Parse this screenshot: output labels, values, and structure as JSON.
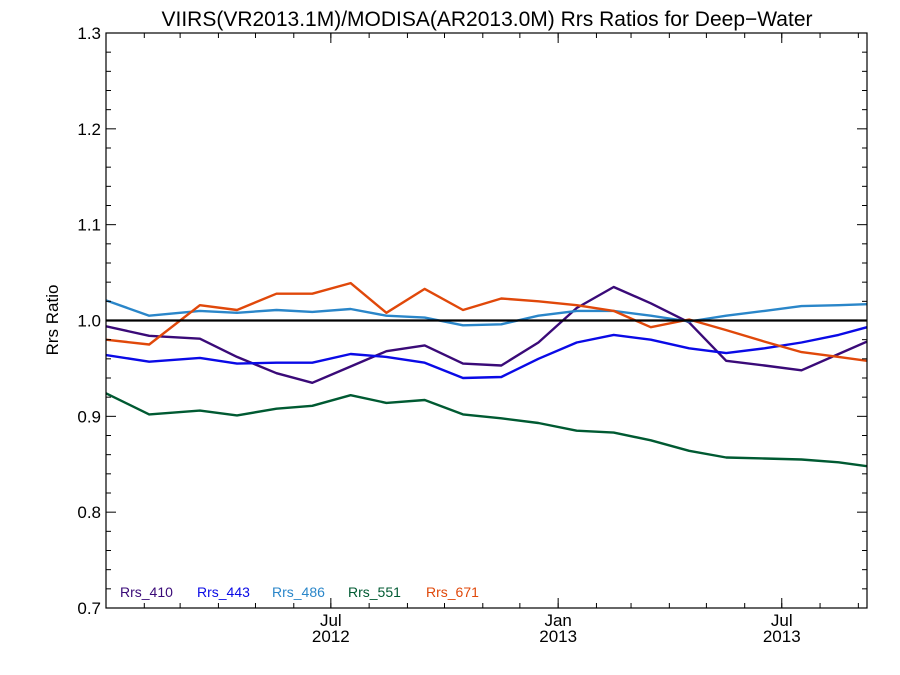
{
  "chart_data": {
    "type": "line",
    "title": "VIIRS(VR2013.1M)/MODISA(AR2013.0M)  Rrs Ratios for Deep−Water",
    "xlabel": "",
    "ylabel": "Rrs Ratio",
    "xlim": [
      "2012-01-01",
      "2013-09-08"
    ],
    "ylim": [
      0.7,
      1.3
    ],
    "y_ticks": [
      {
        "value": 0.7,
        "label": "0.7"
      },
      {
        "value": 0.8,
        "label": "0.8"
      },
      {
        "value": 0.9,
        "label": "0.9"
      },
      {
        "value": 1.0,
        "label": "1.0"
      },
      {
        "value": 1.1,
        "label": "1.1"
      },
      {
        "value": 1.2,
        "label": "1.2"
      },
      {
        "value": 1.3,
        "label": "1.3"
      }
    ],
    "x_ticks": [
      {
        "date": "2012-07-01",
        "month": "Jul",
        "year": "2012"
      },
      {
        "date": "2013-01-01",
        "month": "Jan",
        "year": "2013"
      },
      {
        "date": "2013-07-01",
        "month": "Jul",
        "year": "2013"
      }
    ],
    "reference_line": 1.0,
    "grid": false,
    "legend_position": "bottom-left",
    "x": [
      "2012-01-01",
      "2012-02-05",
      "2012-03-17",
      "2012-04-16",
      "2012-05-18",
      "2012-06-16",
      "2012-07-17",
      "2012-08-15",
      "2012-09-15",
      "2012-10-16",
      "2012-11-16",
      "2012-12-16",
      "2013-01-16",
      "2013-02-15",
      "2013-03-17",
      "2013-04-17",
      "2013-05-17",
      "2013-06-17",
      "2013-07-17",
      "2013-08-16",
      "2013-09-08"
    ],
    "series": [
      {
        "name": "Rrs_410",
        "color": "#3a0a78",
        "values": [
          0.994,
          0.984,
          0.981,
          0.962,
          0.945,
          0.935,
          0.952,
          0.968,
          0.974,
          0.955,
          0.953,
          0.977,
          1.013,
          1.035,
          1.018,
          0.998,
          0.958,
          0.953,
          0.948,
          0.965,
          0.978
        ]
      },
      {
        "name": "Rrs_443",
        "color": "#0a0ae6",
        "values": [
          0.964,
          0.957,
          0.961,
          0.955,
          0.956,
          0.956,
          0.965,
          0.962,
          0.956,
          0.94,
          0.941,
          0.96,
          0.977,
          0.985,
          0.98,
          0.971,
          0.966,
          0.971,
          0.977,
          0.985,
          0.993
        ]
      },
      {
        "name": "Rrs_486",
        "color": "#2a86c9",
        "values": [
          1.021,
          1.005,
          1.01,
          1.008,
          1.011,
          1.009,
          1.012,
          1.005,
          1.003,
          0.995,
          0.996,
          1.005,
          1.01,
          1.01,
          1.005,
          0.999,
          1.005,
          1.01,
          1.015,
          1.016,
          1.017
        ]
      },
      {
        "name": "Rrs_551",
        "color": "#005a32",
        "values": [
          0.924,
          0.902,
          0.906,
          0.901,
          0.908,
          0.911,
          0.922,
          0.914,
          0.917,
          0.902,
          0.898,
          0.893,
          0.885,
          0.883,
          0.875,
          0.864,
          0.857,
          0.856,
          0.855,
          0.852,
          0.848
        ]
      },
      {
        "name": "Rrs_671",
        "color": "#e0480a",
        "values": [
          0.98,
          0.975,
          1.016,
          1.011,
          1.028,
          1.028,
          1.039,
          1.008,
          1.033,
          1.011,
          1.023,
          1.02,
          1.016,
          1.01,
          0.993,
          1.001,
          0.99,
          0.978,
          0.967,
          0.962,
          0.958
        ]
      }
    ]
  }
}
